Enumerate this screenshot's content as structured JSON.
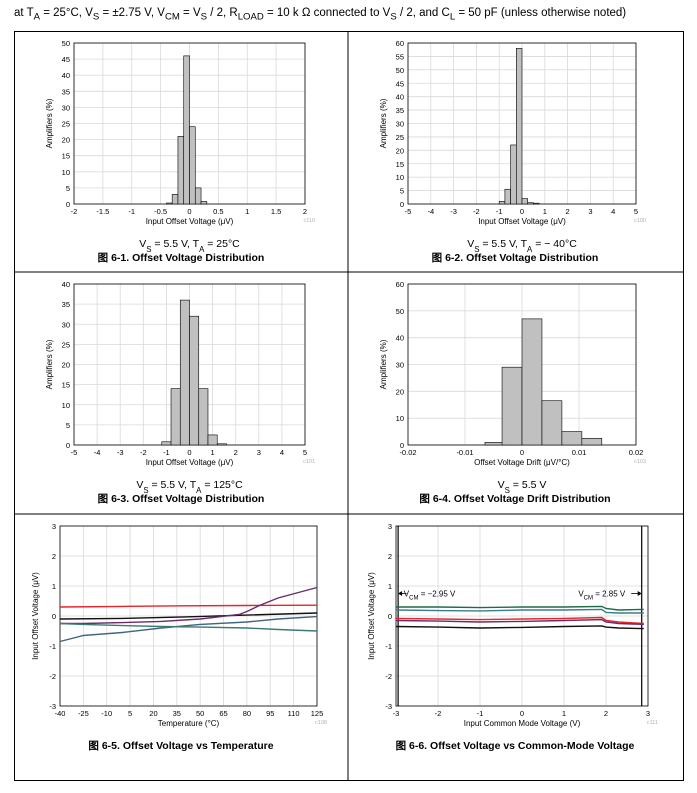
{
  "header": {
    "p1": "at T",
    "s1": "A",
    "p2": " = 25°C, V",
    "s2": "S",
    "p3": " = ±2.75 V, V",
    "s3": "CM",
    "p4": " = V",
    "s4": "S",
    "p5": " / 2, R",
    "s5": "LOAD",
    "p6": " = 10 k Ω  connected to V",
    "s6": "S",
    "p7": " / 2, and C",
    "s7": "L",
    "p8": " = 50 pF (unless otherwise noted)"
  },
  "colors": {
    "bar_fill": "#c0c0c0",
    "bar_stroke": "#000000",
    "grid": "#d9d9d9",
    "border": "#000000"
  },
  "charts": [
    {
      "figure": "图 6-1. Offset Voltage Distribution",
      "code": "c110",
      "caption": {
        "p1": "V",
        "s1": "S",
        "p2": " = 5.5 V, T",
        "s2": "A",
        "p3": " = 25°C"
      },
      "chart_data": {
        "type": "bar",
        "xlabel": "Input Offset Voltage (μV)",
        "ylabel": "Amplifiers (%)",
        "xlim": [
          -2,
          2
        ],
        "ylim": [
          0,
          50
        ],
        "xticks": [
          "-2",
          "-1.5",
          "-1",
          "-0.5",
          "0",
          "0.5",
          "1",
          "1.5",
          "2"
        ],
        "yticks": [
          "0",
          "5",
          "10",
          "15",
          "20",
          "25",
          "30",
          "35",
          "40",
          "45",
          "50"
        ],
        "bin_width": 0.1,
        "bins": [
          -0.4,
          -0.3,
          -0.2,
          -0.1,
          0.0,
          0.1,
          0.2
        ],
        "values": [
          0.3,
          3,
          21,
          46,
          24,
          5,
          0.8
        ]
      }
    },
    {
      "figure": "图 6-2. Offset Voltage Distribution",
      "code": "c100",
      "caption": {
        "p1": "V",
        "s1": "S",
        "p2": " = 5.5 V, T",
        "s2": "A",
        "p3": " =  − 40°C"
      },
      "chart_data": {
        "type": "bar",
        "xlabel": "Input Offset Voltage (μV)",
        "ylabel": "Amplifiers (%)",
        "xlim": [
          -5,
          5
        ],
        "ylim": [
          0,
          60
        ],
        "xticks": [
          "-5",
          "-4",
          "-3",
          "-2",
          "-1",
          "0",
          "1",
          "2",
          "3",
          "4",
          "5"
        ],
        "yticks": [
          "0",
          "5",
          "10",
          "15",
          "20",
          "25",
          "30",
          "35",
          "40",
          "45",
          "50",
          "55",
          "60"
        ],
        "bin_width": 0.25,
        "bins": [
          -1,
          -0.75,
          -0.5,
          -0.25,
          0,
          0.25,
          0.5
        ],
        "values": [
          1,
          5.5,
          22,
          58,
          2,
          0.5,
          0.3
        ]
      }
    },
    {
      "figure": "图 6-3. Offset Voltage Distribution",
      "code": "c101",
      "caption": {
        "p1": "V",
        "s1": "S",
        "p2": " = 5.5 V, T",
        "s2": "A",
        "p3": " = 125°C"
      },
      "chart_data": {
        "type": "bar",
        "xlabel": "Input Offset Voltage (μV)",
        "ylabel": "Amplifiers (%)",
        "xlim": [
          -5,
          5
        ],
        "ylim": [
          0,
          40
        ],
        "xticks": [
          "-5",
          "-4",
          "-3",
          "-2",
          "-1",
          "0",
          "1",
          "2",
          "3",
          "4",
          "5"
        ],
        "yticks": [
          "0",
          "5",
          "10",
          "15",
          "20",
          "25",
          "30",
          "35",
          "40"
        ],
        "bin_width": 0.4,
        "bins": [
          -1.2,
          -0.8,
          -0.4,
          0,
          0.4,
          0.8,
          1.2
        ],
        "values": [
          0.8,
          14,
          36,
          32,
          14,
          2.5,
          0.3
        ]
      }
    },
    {
      "figure": "图 6-4. Offset Voltage Drift Distribution",
      "code": "c103",
      "caption": {
        "p1": "V",
        "s1": "S",
        "p2": " = 5.5 V",
        "s2": "",
        "p3": ""
      },
      "chart_data": {
        "type": "bar",
        "xlabel": "Offset Voltage Drift (μV/°C)",
        "ylabel": "Amplifiers (%)",
        "xlim": [
          -0.02,
          0.02
        ],
        "ylim": [
          0,
          60
        ],
        "xticks": [
          "-0.02",
          "-0.01",
          "0",
          "0.01",
          "0.02"
        ],
        "yticks": [
          "0",
          "10",
          "20",
          "30",
          "40",
          "50",
          "60"
        ],
        "bin_width": 0.0035,
        "bins": [
          -0.0065,
          -0.0035,
          0,
          0.0035,
          0.007,
          0.0105
        ],
        "values": [
          1,
          29,
          47,
          16.5,
          5,
          2.5
        ]
      }
    },
    {
      "figure": "图 6-5. Offset Voltage vs Temperature",
      "code": "c108",
      "chart_data": {
        "type": "line",
        "xlabel": "Temperature (°C)",
        "ylabel": "Input Offset Voltage (μV)",
        "xlim": [
          -40,
          125
        ],
        "ylim": [
          -3,
          3
        ],
        "xticks": [
          "-40",
          "-25",
          "-10",
          "5",
          "20",
          "35",
          "50",
          "65",
          "80",
          "95",
          "110",
          "125"
        ],
        "yticks": [
          "-3",
          "-2",
          "-1",
          "0",
          "1",
          "2",
          "3"
        ],
        "series": [
          {
            "color": "#e8242a",
            "x": [
              -40,
              0,
              40,
              80,
              125
            ],
            "y": [
              0.3,
              0.32,
              0.34,
              0.35,
              0.36
            ]
          },
          {
            "color": "#111111",
            "x": [
              -40,
              0,
              40,
              80,
              125
            ],
            "y": [
              -0.1,
              -0.08,
              -0.03,
              0.03,
              0.1
            ]
          },
          {
            "color": "#6b2a6b",
            "x": [
              -40,
              -25,
              0,
              25,
              50,
              75,
              80,
              88,
              100,
              125
            ],
            "y": [
              -0.25,
              -0.25,
              -0.22,
              -0.18,
              -0.1,
              0.05,
              0.15,
              0.35,
              0.6,
              0.95
            ]
          },
          {
            "color": "#41657f",
            "x": [
              -40,
              -25,
              0,
              25,
              50,
              80,
              100,
              125
            ],
            "y": [
              -0.85,
              -0.65,
              -0.55,
              -0.4,
              -0.28,
              -0.2,
              -0.1,
              -0.02
            ]
          },
          {
            "color": "#3c7a73",
            "x": [
              -40,
              -25,
              0,
              25,
              50,
              80,
              100,
              125
            ],
            "y": [
              -0.25,
              -0.28,
              -0.32,
              -0.35,
              -0.37,
              -0.4,
              -0.45,
              -0.5
            ]
          }
        ]
      }
    },
    {
      "figure": "图 6-6. Offset Voltage vs Common-Mode Voltage",
      "code": "c111",
      "annotations": {
        "left": {
          "p1": "V",
          "s1": "CM",
          "p2": " = −2.95 V"
        },
        "right": {
          "p1": "V",
          "s1": "CM",
          "p2": " = 2.85 V"
        }
      },
      "chart_data": {
        "type": "line",
        "xlabel": "Input Common Mode Voltage (V)",
        "ylabel": "Input Offset Voltage (μV)",
        "xlim": [
          -3,
          3
        ],
        "ylim": [
          -3,
          3
        ],
        "xticks": [
          "-3",
          "-2",
          "-1",
          "0",
          "1",
          "2",
          "3"
        ],
        "yticks": [
          "-3",
          "-2",
          "-1",
          "0",
          "1",
          "2",
          "3"
        ],
        "vlines": [
          -2.95,
          2.85
        ],
        "series": [
          {
            "color": "#1f6a47",
            "x": [
              -3,
              -2,
              -1,
              0,
              1,
              1.9,
              2.0,
              2.3,
              2.9
            ],
            "y": [
              0.3,
              0.3,
              0.28,
              0.3,
              0.3,
              0.32,
              0.25,
              0.2,
              0.22
            ]
          },
          {
            "color": "#3a7d8a",
            "x": [
              -3,
              -2,
              -1,
              0,
              1,
              1.9,
              2.0,
              2.3,
              2.9
            ],
            "y": [
              0.2,
              0.18,
              0.17,
              0.2,
              0.2,
              0.22,
              0.12,
              0.1,
              0.1
            ]
          },
          {
            "color": "#e8242a",
            "x": [
              -3,
              -2,
              -1,
              0,
              1,
              1.9,
              2.0,
              2.3,
              2.9
            ],
            "y": [
              -0.08,
              -0.1,
              -0.12,
              -0.1,
              -0.08,
              -0.05,
              -0.15,
              -0.2,
              -0.25
            ]
          },
          {
            "color": "#6b2a6b",
            "x": [
              -3,
              -2,
              -1,
              0,
              1,
              1.9,
              2.0,
              2.3,
              2.9
            ],
            "y": [
              -0.15,
              -0.17,
              -0.2,
              -0.18,
              -0.15,
              -0.12,
              -0.2,
              -0.25,
              -0.28
            ]
          },
          {
            "color": "#111111",
            "x": [
              -3,
              -2,
              -1,
              0,
              1,
              1.9,
              2.0,
              2.3,
              2.9
            ],
            "y": [
              -0.35,
              -0.37,
              -0.4,
              -0.38,
              -0.35,
              -0.33,
              -0.37,
              -0.4,
              -0.42
            ]
          }
        ]
      }
    }
  ]
}
